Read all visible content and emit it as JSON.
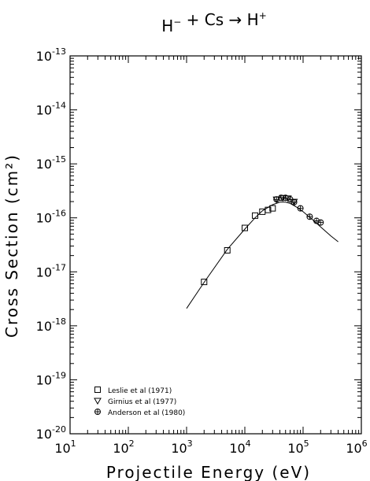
{
  "chart_data": {
    "type": "scatter",
    "title": {
      "parts": [
        {
          "text": "H",
          "sup": "−"
        },
        {
          "text": " + Cs → "
        },
        {
          "text": "H",
          "sup": "+"
        }
      ]
    },
    "xlabel": "Projectile Energy (eV)",
    "ylabel": "Cross Section (cm²)",
    "xscale": "log",
    "yscale": "log",
    "xlim": [
      10,
      1000000
    ],
    "ylim": [
      1e-20,
      1e-13
    ],
    "x_ticks": [
      {
        "value": 10,
        "base": "10",
        "exp": "1"
      },
      {
        "value": 100,
        "base": "10",
        "exp": "2"
      },
      {
        "value": 1000,
        "base": "10",
        "exp": "3"
      },
      {
        "value": 10000,
        "base": "10",
        "exp": "4"
      },
      {
        "value": 100000,
        "base": "10",
        "exp": "5"
      },
      {
        "value": 1000000,
        "base": "10",
        "exp": "6"
      }
    ],
    "y_ticks": [
      {
        "value": 1e-20,
        "base": "10",
        "exp": "-20"
      },
      {
        "value": 1e-19,
        "base": "10",
        "exp": "-19"
      },
      {
        "value": 1e-18,
        "base": "10",
        "exp": "-18"
      },
      {
        "value": 1e-17,
        "base": "10",
        "exp": "-17"
      },
      {
        "value": 1e-16,
        "base": "10",
        "exp": "-16"
      },
      {
        "value": 1e-15,
        "base": "10",
        "exp": "-15"
      },
      {
        "value": 1e-14,
        "base": "10",
        "exp": "-14"
      },
      {
        "value": 1e-13,
        "base": "10",
        "exp": "-13"
      }
    ],
    "grid": false,
    "legend_position": "bottom-left",
    "fit_curve": {
      "x": [
        1000,
        2000,
        5000,
        10000,
        15000,
        20000,
        30000,
        40000,
        50000,
        60000,
        80000,
        100000,
        150000,
        200000,
        300000,
        400000
      ],
      "y": [
        2.1e-18,
        6.4e-18,
        2.6e-17,
        6.2e-17,
        1e-16,
        1.35e-16,
        1.75e-16,
        1.95e-16,
        1.95e-16,
        1.85e-16,
        1.55e-16,
        1.3e-16,
        9e-17,
        6.8e-17,
        4.6e-17,
        3.6e-17
      ]
    },
    "series": [
      {
        "name": "Leslie et al (1971)",
        "marker": "square",
        "x": [
          2000,
          5000,
          10000,
          15000,
          20000,
          25000,
          30000
        ],
        "y": [
          6.5e-18,
          2.5e-17,
          6.5e-17,
          1.1e-16,
          1.3e-16,
          1.4e-16,
          1.5e-16
        ]
      },
      {
        "name": "Girnius et al (1977)",
        "marker": "triangle-down",
        "x": [
          35000,
          45000,
          55000,
          70000
        ],
        "y": [
          2.2e-16,
          2.35e-16,
          2.3e-16,
          2e-16
        ]
      },
      {
        "name": "Anderson et al (1980)",
        "marker": "circle-cross",
        "x": [
          35000,
          42000,
          50000,
          60000,
          70000,
          90000,
          130000,
          170000,
          200000
        ],
        "y": [
          2.2e-16,
          2.35e-16,
          2.35e-16,
          2.2e-16,
          1.95e-16,
          1.5e-16,
          1.05e-16,
          8.8e-17,
          8.2e-17
        ]
      }
    ]
  }
}
